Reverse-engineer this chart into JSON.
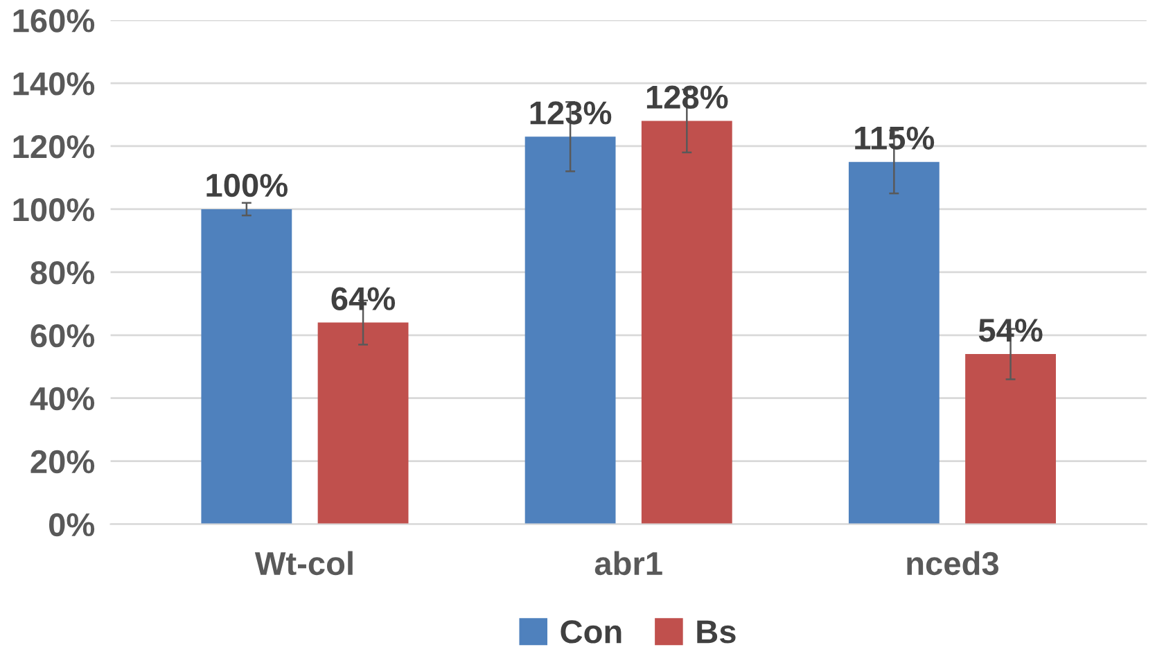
{
  "chart_data": {
    "type": "bar",
    "categories": [
      "Wt-col",
      "abr1",
      "nced3"
    ],
    "series": [
      {
        "name": "Con",
        "color": "#4f81bd",
        "values": [
          100,
          123,
          115
        ],
        "errors": [
          2,
          11,
          10
        ],
        "value_labels": [
          "100%",
          "123%",
          "115%"
        ]
      },
      {
        "name": "Bs",
        "color": "#c0504d",
        "values": [
          64,
          128,
          54
        ],
        "errors": [
          7,
          10,
          8
        ],
        "value_labels": [
          "64%",
          "128%",
          "54%"
        ]
      }
    ],
    "ylim": [
      0,
      160
    ],
    "yticks": [
      {
        "value": 0,
        "label": "0%"
      },
      {
        "value": 20,
        "label": "20%"
      },
      {
        "value": 40,
        "label": "40%"
      },
      {
        "value": 60,
        "label": "60%"
      },
      {
        "value": 80,
        "label": "80%"
      },
      {
        "value": 100,
        "label": "100%"
      },
      {
        "value": 120,
        "label": "120%"
      },
      {
        "value": 140,
        "label": "140%"
      },
      {
        "value": 160,
        "label": "160%"
      }
    ],
    "grid": "y",
    "legend": "bottom"
  }
}
